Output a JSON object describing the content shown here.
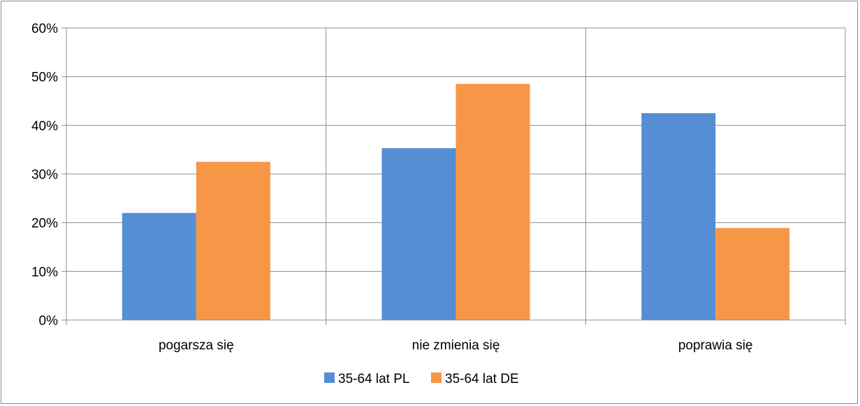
{
  "chart_data": {
    "type": "bar",
    "categories": [
      "pogarsza się",
      "nie zmienia się",
      "poprawia się"
    ],
    "series": [
      {
        "name": "35-64 lat PL",
        "values": [
          22,
          35.3,
          42.5
        ],
        "color": "#558ed5"
      },
      {
        "name": "35-64 lat DE",
        "values": [
          32.5,
          48.5,
          18.9
        ],
        "color": "#f79646"
      }
    ],
    "ylim": [
      0,
      60
    ],
    "yticks": [
      0,
      10,
      20,
      30,
      40,
      50,
      60
    ],
    "ytick_labels": [
      "0%",
      "10%",
      "20%",
      "30%",
      "40%",
      "50%",
      "60%"
    ],
    "grid": true,
    "legend_position": "bottom"
  }
}
